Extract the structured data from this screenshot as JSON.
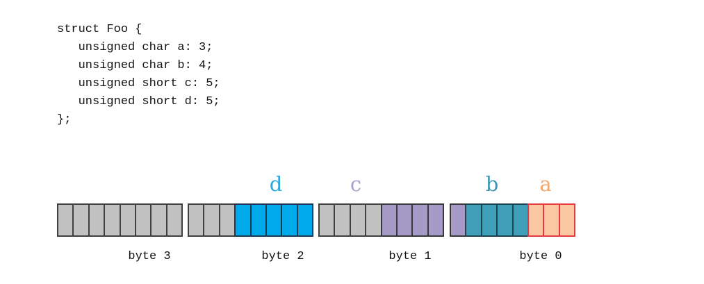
{
  "code": {
    "lines": [
      "struct Foo {",
      "   unsigned char a: 3;",
      "   unsigned char b: 4;",
      "   unsigned short c: 5;",
      "   unsigned short d: 5;",
      "};"
    ]
  },
  "diagram": {
    "field_labels": [
      {
        "text": "d",
        "color": "#29a8e0"
      },
      {
        "text": "c",
        "color": "#a7a2ce"
      },
      {
        "text": "b",
        "color": "#3e96b4"
      },
      {
        "text": "a",
        "color": "#f3a66b"
      }
    ],
    "bytes": [
      {
        "label": "byte 3",
        "cells": [
          "gray",
          "gray",
          "gray",
          "gray",
          "gray",
          "gray",
          "gray",
          "gray"
        ]
      },
      {
        "label": "byte 2",
        "cells": [
          "gray",
          "gray",
          "gray",
          "blue",
          "blue",
          "blue",
          "blue",
          "blue"
        ]
      },
      {
        "label": "byte 1",
        "cells": [
          "gray",
          "gray",
          "gray",
          "gray",
          "purple",
          "purple",
          "purple",
          "purple"
        ]
      },
      {
        "label": "byte 0",
        "cells": [
          "purple",
          "teal",
          "teal",
          "teal",
          "teal",
          "orange",
          "orange",
          "orange"
        ]
      }
    ],
    "cell_styles": {
      "gray": {
        "fill": "#c1c1c1",
        "border": "#404040",
        "field": "padding"
      },
      "blue": {
        "fill": "#00a9e9",
        "border": "#1c3950",
        "field": "d"
      },
      "purple": {
        "fill": "#a69bc7",
        "border": "#383838",
        "field": "c"
      },
      "teal": {
        "fill": "#3f9fb8",
        "border": "#1f4450",
        "field": "b"
      },
      "orange": {
        "fill": "#f9c8a2",
        "border": "#e8393c",
        "field": "a"
      }
    }
  }
}
